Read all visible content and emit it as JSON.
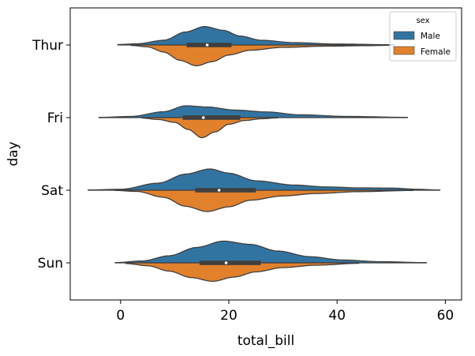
{
  "chart_data": {
    "type": "violin",
    "orientation": "horizontal",
    "split": true,
    "xlabel": "total_bill",
    "ylabel": "day",
    "xlim": [
      -9.3,
      63
    ],
    "xticks": [
      0,
      20,
      40,
      60
    ],
    "categories": [
      "Thur",
      "Fri",
      "Sat",
      "Sun"
    ],
    "legend": {
      "title": "sex",
      "position": "top-right"
    },
    "series": [
      {
        "name": "Male",
        "color": "#3274a1",
        "side": "upper",
        "violins": [
          {
            "day": "Thur",
            "range": [
              -0.5,
              50.5
            ],
            "density": [
              [
                -0.5,
                0.02
              ],
              [
                3,
                0.05
              ],
              [
                8,
                0.2
              ],
              [
                12,
                0.55
              ],
              [
                15.5,
                0.78
              ],
              [
                19,
                0.62
              ],
              [
                22,
                0.38
              ],
              [
                26,
                0.2
              ],
              [
                32,
                0.1
              ],
              [
                40,
                0.04
              ],
              [
                50.5,
                0.01
              ]
            ]
          },
          {
            "day": "Fri",
            "range": [
              -4,
              53
            ],
            "density": [
              [
                -4,
                0.01
              ],
              [
                2,
                0.05
              ],
              [
                8,
                0.25
              ],
              [
                12,
                0.5
              ],
              [
                16,
                0.45
              ],
              [
                21,
                0.32
              ],
              [
                27,
                0.24
              ],
              [
                33,
                0.12
              ],
              [
                42,
                0.05
              ],
              [
                53,
                0.01
              ]
            ]
          },
          {
            "day": "Sat",
            "range": [
              -6,
              59
            ],
            "density": [
              [
                -6,
                0.01
              ],
              [
                0,
                0.04
              ],
              [
                7,
                0.3
              ],
              [
                12,
                0.68
              ],
              [
                16.5,
                0.9
              ],
              [
                20,
                0.72
              ],
              [
                25,
                0.4
              ],
              [
                32,
                0.22
              ],
              [
                38,
                0.14
              ],
              [
                44,
                0.1
              ],
              [
                50,
                0.09
              ],
              [
                55,
                0.04
              ],
              [
                59,
                0.01
              ]
            ]
          },
          {
            "day": "Sun",
            "range": [
              -1,
              56.5
            ],
            "density": [
              [
                -1,
                0.01
              ],
              [
                4,
                0.08
              ],
              [
                9,
                0.3
              ],
              [
                14,
                0.65
              ],
              [
                19,
                0.92
              ],
              [
                24,
                0.78
              ],
              [
                29,
                0.5
              ],
              [
                35,
                0.26
              ],
              [
                41,
                0.12
              ],
              [
                48,
                0.05
              ],
              [
                56.5,
                0.01
              ]
            ]
          }
        ],
        "boxes": [
          {
            "day": "Thur",
            "q1": 12.2,
            "median": 16.0,
            "q3": 20.5
          },
          {
            "day": "Fri",
            "q1": 11.5,
            "median": 15.3,
            "q3": 22.1
          },
          {
            "day": "Sat",
            "q1": 13.8,
            "median": 18.2,
            "q3": 25.0
          },
          {
            "day": "Sun",
            "q1": 14.6,
            "median": 19.5,
            "q3": 25.9
          }
        ]
      },
      {
        "name": "Female",
        "color": "#e1812c",
        "side": "lower",
        "violins": [
          {
            "day": "Thur",
            "range": [
              2,
              50.5
            ],
            "density": [
              [
                2,
                0.02
              ],
              [
                5,
                0.08
              ],
              [
                8,
                0.3
              ],
              [
                11,
                0.65
              ],
              [
                14,
                0.88
              ],
              [
                17,
                0.7
              ],
              [
                20,
                0.42
              ],
              [
                24,
                0.22
              ],
              [
                30,
                0.1
              ],
              [
                38,
                0.05
              ],
              [
                45,
                0.03
              ],
              [
                50.5,
                0.01
              ]
            ]
          },
          {
            "day": "Fri",
            "range": [
              4,
              29
            ],
            "density": [
              [
                4,
                0.02
              ],
              [
                7,
                0.08
              ],
              [
                10,
                0.2
              ],
              [
                12.5,
                0.5
              ],
              [
                15,
                0.85
              ],
              [
                17.5,
                0.6
              ],
              [
                20,
                0.28
              ],
              [
                23,
                0.12
              ],
              [
                26,
                0.05
              ],
              [
                29,
                0.01
              ]
            ]
          },
          {
            "day": "Sat",
            "range": [
              -1,
              54
            ],
            "density": [
              [
                -1,
                0.01
              ],
              [
                3,
                0.05
              ],
              [
                8,
                0.3
              ],
              [
                12,
                0.68
              ],
              [
                16,
                0.9
              ],
              [
                20,
                0.7
              ],
              [
                24,
                0.42
              ],
              [
                30,
                0.24
              ],
              [
                36,
                0.14
              ],
              [
                44,
                0.06
              ],
              [
                54,
                0.01
              ]
            ]
          },
          {
            "day": "Sun",
            "range": [
              1,
              44
            ],
            "density": [
              [
                1,
                0.03
              ],
              [
                5,
                0.12
              ],
              [
                9,
                0.35
              ],
              [
                13,
                0.62
              ],
              [
                17,
                0.78
              ],
              [
                21,
                0.6
              ],
              [
                25,
                0.38
              ],
              [
                30,
                0.2
              ],
              [
                36,
                0.1
              ],
              [
                44,
                0.02
              ]
            ]
          }
        ]
      }
    ]
  }
}
